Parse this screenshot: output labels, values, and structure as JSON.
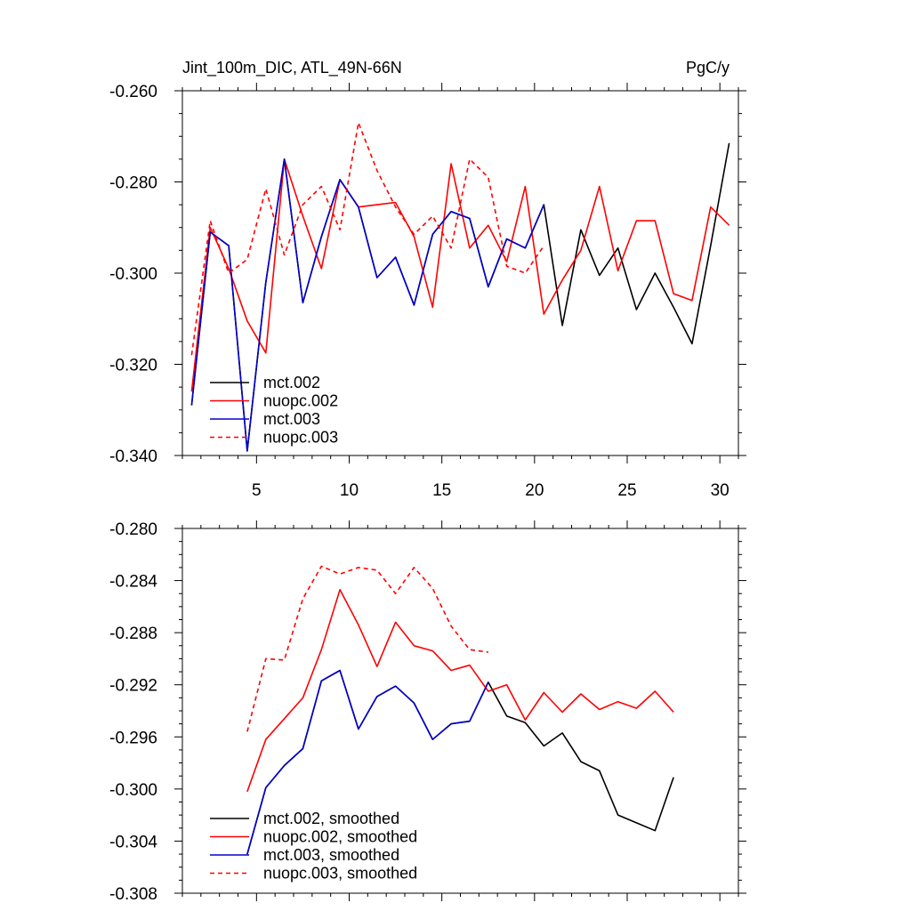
{
  "top_title_left": "Jint_100m_DIC, ATL_49N-66N",
  "top_title_right": "PgC/y",
  "colors": {
    "black": "#000000",
    "red": "#ff0000",
    "blue": "#0000cd"
  },
  "chart_data": [
    {
      "type": "line",
      "xlim": [
        1,
        31
      ],
      "ylim": [
        -0.34,
        -0.26
      ],
      "x_ticks": [
        5,
        10,
        15,
        20,
        25,
        30
      ],
      "y_ticks": [
        "-0.260",
        "-0.280",
        "-0.300",
        "-0.320",
        "-0.340"
      ],
      "grid": false,
      "legend_position": "bottom-left",
      "series": [
        {
          "name": "mct.002",
          "color": "#000000",
          "dash": false,
          "x": [
            1.5,
            2.5,
            3.5,
            4.5,
            5.5,
            6.5,
            7.5,
            8.5,
            9.5,
            10.5,
            11.5,
            12.5,
            13.5,
            14.5,
            15.5,
            16.5,
            17.5,
            18.5,
            19.5,
            20.5,
            21.5,
            22.5,
            23.5,
            24.5,
            25.5,
            26.5,
            27.5,
            28.5,
            29.5,
            30.5
          ],
          "y": [
            -0.329,
            -0.291,
            -0.294,
            -0.339,
            -0.302,
            -0.275,
            -0.3065,
            -0.292,
            -0.2795,
            -0.2855,
            -0.301,
            -0.2965,
            -0.307,
            -0.2915,
            -0.2865,
            -0.288,
            -0.303,
            -0.2925,
            -0.2945,
            -0.285,
            -0.3115,
            -0.2905,
            -0.3005,
            -0.2945,
            -0.308,
            -0.3,
            -0.3075,
            -0.3155,
            -0.294,
            -0.2715
          ]
        },
        {
          "name": "nuopc.002",
          "color": "#ff0000",
          "dash": false,
          "x": [
            1.5,
            2.5,
            3.5,
            4.5,
            5.5,
            6.5,
            7.5,
            8.5,
            9.5,
            10.5,
            11.5,
            12.5,
            13.5,
            14.5,
            15.5,
            16.5,
            17.5,
            18.5,
            19.5,
            20.5,
            21.5,
            22.5,
            23.5,
            24.5,
            25.5,
            26.5,
            27.5,
            28.5,
            29.5,
            30.5
          ],
          "y": [
            -0.326,
            -0.29,
            -0.299,
            -0.3105,
            -0.3175,
            -0.275,
            -0.2875,
            -0.299,
            -0.2795,
            -0.2855,
            -0.285,
            -0.2845,
            -0.292,
            -0.3075,
            -0.276,
            -0.2945,
            -0.2895,
            -0.2975,
            -0.281,
            -0.309,
            -0.3015,
            -0.295,
            -0.281,
            -0.2995,
            -0.2885,
            -0.2885,
            -0.3045,
            -0.306,
            -0.2855,
            -0.2895
          ]
        },
        {
          "name": "mct.003",
          "color": "#0000cd",
          "dash": false,
          "x": [
            1.5,
            2.5,
            3.5,
            4.5,
            5.5,
            6.5,
            7.5,
            8.5,
            9.5,
            10.5,
            11.5,
            12.5,
            13.5,
            14.5,
            15.5,
            16.5,
            17.5,
            18.5,
            19.5,
            20.5
          ],
          "y": [
            -0.329,
            -0.291,
            -0.294,
            -0.339,
            -0.302,
            -0.275,
            -0.3065,
            -0.292,
            -0.2795,
            -0.2855,
            -0.301,
            -0.2965,
            -0.307,
            -0.2915,
            -0.2865,
            -0.288,
            -0.303,
            -0.2925,
            -0.2945,
            -0.285
          ]
        },
        {
          "name": "nuopc.003",
          "color": "#ff0000",
          "dash": true,
          "x": [
            1.5,
            2.5,
            3.5,
            4.5,
            5.5,
            6.5,
            7.5,
            8.5,
            9.5,
            10.5,
            11.5,
            12.5,
            13.5,
            14.5,
            15.5,
            16.5,
            17.5,
            18.5,
            19.5,
            20.5
          ],
          "y": [
            -0.318,
            -0.2885,
            -0.3,
            -0.297,
            -0.2815,
            -0.296,
            -0.285,
            -0.281,
            -0.2905,
            -0.267,
            -0.2775,
            -0.2855,
            -0.2915,
            -0.2875,
            -0.2945,
            -0.275,
            -0.279,
            -0.2985,
            -0.3,
            -0.294
          ]
        }
      ]
    },
    {
      "type": "line",
      "xlim": [
        1,
        31
      ],
      "ylim": [
        -0.308,
        -0.28
      ],
      "x_ticks": [],
      "y_ticks": [
        "-0.280",
        "-0.284",
        "-0.288",
        "-0.292",
        "-0.296",
        "-0.300",
        "-0.304",
        "-0.308"
      ],
      "grid": false,
      "legend_position": "bottom-left",
      "series": [
        {
          "name": "mct.002, smoothed",
          "color": "#000000",
          "dash": false,
          "x": [
            4.5,
            5.5,
            6.5,
            7.5,
            8.5,
            9.5,
            10.5,
            11.5,
            12.5,
            13.5,
            14.5,
            15.5,
            16.5,
            17.5,
            18.5,
            19.5,
            20.5,
            21.5,
            22.5,
            23.5,
            24.5,
            25.5,
            26.5,
            27.5
          ],
          "y": [
            -0.305,
            -0.2999,
            -0.2982,
            -0.2969,
            -0.2917,
            -0.2909,
            -0.2954,
            -0.2929,
            -0.2921,
            -0.2934,
            -0.2962,
            -0.295,
            -0.2948,
            -0.2918,
            -0.2944,
            -0.2949,
            -0.2967,
            -0.2957,
            -0.2979,
            -0.2986,
            -0.302,
            -0.3026,
            -0.3032,
            -0.2991
          ]
        },
        {
          "name": "nuopc.002, smoothed",
          "color": "#ff0000",
          "dash": false,
          "x": [
            4.5,
            5.5,
            6.5,
            7.5,
            8.5,
            9.5,
            10.5,
            11.5,
            12.5,
            13.5,
            14.5,
            15.5,
            16.5,
            17.5,
            18.5,
            19.5,
            20.5,
            21.5,
            22.5,
            23.5,
            24.5,
            25.5,
            26.5,
            27.5
          ],
          "y": [
            -0.3002,
            -0.2962,
            -0.2946,
            -0.293,
            -0.2893,
            -0.2847,
            -0.2874,
            -0.2906,
            -0.2872,
            -0.289,
            -0.2894,
            -0.2909,
            -0.2905,
            -0.2925,
            -0.292,
            -0.2947,
            -0.2926,
            -0.2941,
            -0.2927,
            -0.2939,
            -0.2933,
            -0.2938,
            -0.2925,
            -0.2941
          ]
        },
        {
          "name": "mct.003, smoothed",
          "color": "#0000cd",
          "dash": false,
          "x": [
            4.5,
            5.5,
            6.5,
            7.5,
            8.5,
            9.5,
            10.5,
            11.5,
            12.5,
            13.5,
            14.5,
            15.5,
            16.5,
            17.5
          ],
          "y": [
            -0.305,
            -0.2999,
            -0.2982,
            -0.2969,
            -0.2917,
            -0.2909,
            -0.2954,
            -0.2929,
            -0.2921,
            -0.2934,
            -0.2962,
            -0.295,
            -0.2948,
            -0.2918
          ]
        },
        {
          "name": "nuopc.003, smoothed",
          "color": "#ff0000",
          "dash": true,
          "x": [
            4.5,
            5.5,
            6.5,
            7.5,
            8.5,
            9.5,
            10.5,
            11.5,
            12.5,
            13.5,
            14.5,
            15.5,
            16.5,
            17.5
          ],
          "y": [
            -0.2956,
            -0.29,
            -0.2901,
            -0.2854,
            -0.2829,
            -0.2835,
            -0.283,
            -0.2832,
            -0.285,
            -0.283,
            -0.2846,
            -0.2875,
            -0.2893,
            -0.2895
          ]
        }
      ]
    }
  ]
}
